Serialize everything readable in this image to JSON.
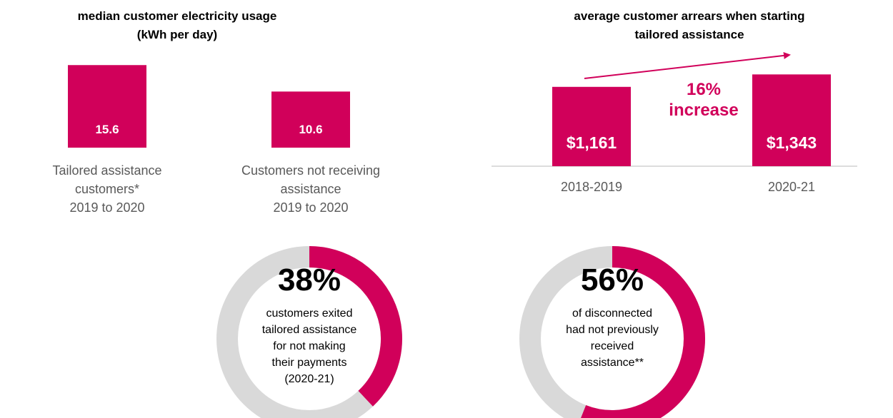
{
  "chart_data": [
    {
      "type": "bar",
      "title": "median customer electricity usage\n(kWh per day)",
      "categories": [
        "Tailored assistance\ncustomers*\n2019 to 2020",
        "Customers not receiving\nassistance\n2019 to 2020"
      ],
      "values": [
        15.6,
        10.6
      ],
      "color": "#d1005a"
    },
    {
      "type": "bar",
      "title": "average customer arrears when starting\ntailored assistance",
      "categories": [
        "2018-2019",
        "2020-21"
      ],
      "values": [
        1161,
        1343
      ],
      "value_labels": [
        "$1,161",
        "$1,343"
      ],
      "annotation": "16%\nincrease",
      "color": "#d1005a"
    },
    {
      "type": "donut",
      "value": 38,
      "value_label": "38%",
      "text": "customers exited\ntailored assistance\nfor not making\ntheir payments\n(2020-21)",
      "color": "#d1005a",
      "track_color": "#d9d9d9"
    },
    {
      "type": "donut",
      "value": 56,
      "value_label": "56%",
      "text": "of disconnected\nhad not previously\nreceived\nassistance**",
      "color": "#d1005a",
      "track_color": "#d9d9d9"
    }
  ]
}
